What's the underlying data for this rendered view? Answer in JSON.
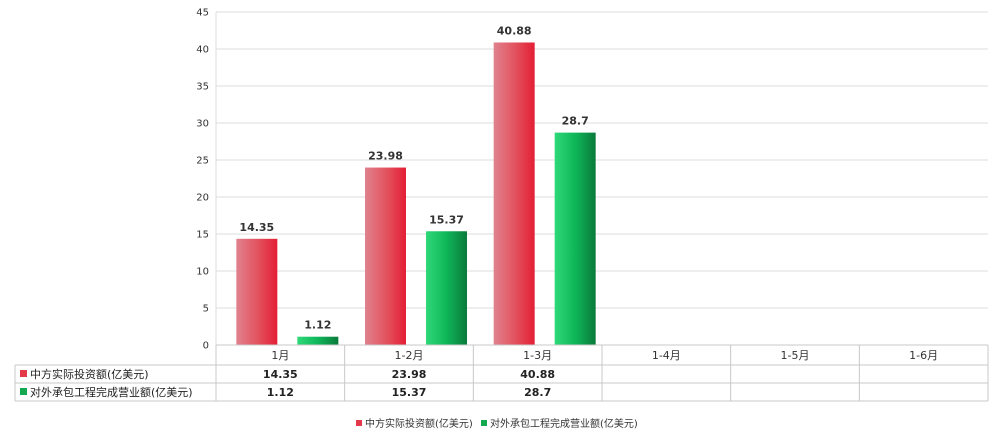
{
  "chart_data": {
    "type": "bar",
    "categories": [
      "1月",
      "1-2月",
      "1-3月",
      "1-4月",
      "1-5月",
      "1-6月"
    ],
    "series": [
      {
        "name": "中方实际投资额(亿美元)",
        "values": [
          14.35,
          23.98,
          40.88,
          null,
          null,
          null
        ],
        "color": "#e23a48"
      },
      {
        "name": "对外承包工程完成营业额(亿美元)",
        "values": [
          1.12,
          15.37,
          28.7,
          null,
          null,
          null
        ],
        "color": "#14a850"
      }
    ],
    "ylim": [
      0,
      45
    ],
    "yticks": [
      0,
      5,
      10,
      15,
      20,
      25,
      30,
      35,
      40,
      45
    ],
    "grid": true,
    "legend": "bottom",
    "data_table": true
  }
}
